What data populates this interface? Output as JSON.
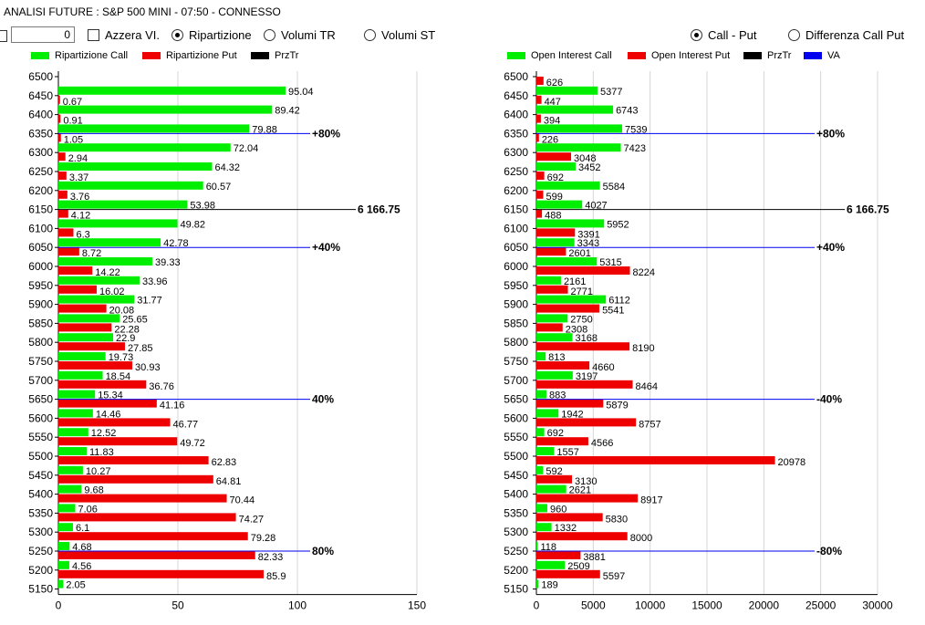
{
  "window_title": "ANALISI FUTURE : S&P 500 MINI - 07:50 - CONNESSO",
  "controls": {
    "value": "0",
    "azzera_label": "Azzera VI.",
    "ripartizione_label": "Ripartizione",
    "volumi_tr_label": "Volumi TR",
    "volumi_st_label": "Volumi ST",
    "call_put_label": "Call - Put",
    "diff_label": "Differenza Call Put"
  },
  "colors": {
    "call": "#00ee00",
    "put": "#ee0000",
    "przTr": "#000000",
    "va": "#0000ee"
  },
  "icons": {
    "checkbox": "checkbox-icon",
    "radio": "radio-button-icon"
  },
  "chart_data": [
    {
      "type": "bar",
      "orientation": "horizontal",
      "legend": [
        "Ripartizione Call",
        "Ripartizione Put",
        "PrzTr"
      ],
      "categories": [
        "6500",
        "6450",
        "6400",
        "6350",
        "6300",
        "6250",
        "6200",
        "6150",
        "6100",
        "6050",
        "6000",
        "5950",
        "5900",
        "5850",
        "5800",
        "5750",
        "5700",
        "5650",
        "5600",
        "5550",
        "5500",
        "5450",
        "5400",
        "5350",
        "5300",
        "5250",
        "5200",
        "5150"
      ],
      "series": [
        {
          "name": "Ripartizione Call",
          "values": [
            null,
            95.04,
            89.42,
            79.88,
            72.04,
            64.32,
            60.57,
            53.98,
            49.82,
            42.78,
            39.33,
            33.96,
            31.77,
            25.65,
            22.9,
            19.73,
            18.54,
            15.34,
            14.46,
            12.52,
            11.83,
            10.27,
            9.68,
            7.06,
            6.1,
            4.68,
            4.56,
            2.05
          ]
        },
        {
          "name": "Ripartizione Put",
          "values": [
            null,
            0.67,
            0.91,
            1.05,
            2.94,
            3.37,
            3.76,
            4.12,
            6.3,
            8.72,
            14.22,
            16.02,
            20.08,
            22.28,
            27.85,
            30.93,
            36.76,
            41.16,
            46.77,
            49.72,
            62.83,
            64.81,
            70.44,
            74.27,
            79.28,
            82.33,
            85.9,
            null
          ]
        }
      ],
      "xticks": [
        "0",
        "50",
        "100",
        "150"
      ],
      "xlim": [
        0,
        150
      ],
      "levels": [
        {
          "label": "+80%",
          "price": 6350,
          "kind": "va"
        },
        {
          "label": "6 166.75",
          "price": 6150,
          "kind": "przTr"
        },
        {
          "label": "+40%",
          "price": 6050,
          "kind": "va"
        },
        {
          "label": "40%",
          "price": 5650,
          "kind": "va"
        },
        {
          "label": "80%",
          "price": 5250,
          "kind": "va"
        }
      ]
    },
    {
      "type": "bar",
      "orientation": "horizontal",
      "legend": [
        "Open Interest Call",
        "Open Interest Put",
        "PrzTr",
        "VA"
      ],
      "categories": [
        "6500",
        "6450",
        "6400",
        "6350",
        "6300",
        "6250",
        "6200",
        "6150",
        "6100",
        "6050",
        "6000",
        "5950",
        "5900",
        "5850",
        "5800",
        "5750",
        "5700",
        "5650",
        "5600",
        "5550",
        "5500",
        "5450",
        "5400",
        "5350",
        "5300",
        "5250",
        "5200",
        "5150"
      ],
      "series": [
        {
          "name": "Open Interest Call",
          "values": [
            null,
            5377,
            6743,
            7539,
            7423,
            3452,
            5584,
            4027,
            5952,
            3343,
            5315,
            2161,
            6112,
            2750,
            3168,
            813,
            3197,
            883,
            1942,
            692,
            1557,
            592,
            2621,
            960,
            1332,
            118,
            2509,
            189
          ]
        },
        {
          "name": "Open Interest Put",
          "values": [
            626,
            447,
            394,
            226,
            3048,
            692,
            599,
            488,
            3391,
            2601,
            8224,
            2771,
            5541,
            2308,
            8190,
            4660,
            8464,
            5879,
            8757,
            4566,
            20978,
            3130,
            8917,
            5830,
            8000,
            3881,
            5597,
            null
          ]
        }
      ],
      "xticks": [
        "0",
        "5000",
        "10000",
        "15000",
        "20000",
        "25000",
        "30000"
      ],
      "xlim": [
        0,
        30000
      ],
      "levels": [
        {
          "label": "+80%",
          "price": 6350,
          "kind": "va"
        },
        {
          "label": "6 166.75",
          "price": 6150,
          "kind": "przTr"
        },
        {
          "label": "+40%",
          "price": 6050,
          "kind": "va"
        },
        {
          "label": "-40%",
          "price": 5650,
          "kind": "va"
        },
        {
          "label": "-80%",
          "price": 5250,
          "kind": "va"
        }
      ]
    }
  ]
}
